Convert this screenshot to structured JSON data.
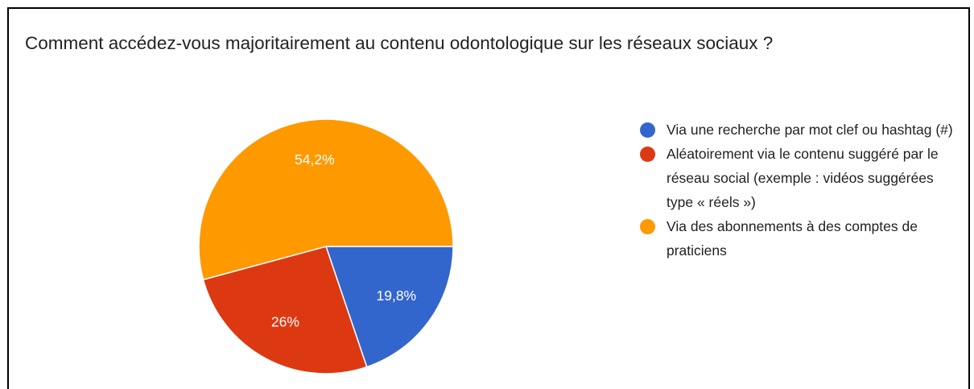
{
  "chart_data": {
    "type": "pie",
    "title": "Comment accédez-vous majoritairement au contenu odontologique sur les réseaux sociaux ?",
    "categories": [
      "Via une recherche par mot clef ou hashtag (#)",
      "Aléatoirement via le contenu suggéré par le réseau social (exemple : vidéos suggérées type « réels »)",
      "Via des abonnements à des comptes de praticiens"
    ],
    "values": [
      19.8,
      26,
      54.2
    ],
    "value_labels": [
      "19,8%",
      "26%",
      "54,2%"
    ],
    "colors": [
      "#3366cc",
      "#dc3912",
      "#ff9900"
    ]
  }
}
